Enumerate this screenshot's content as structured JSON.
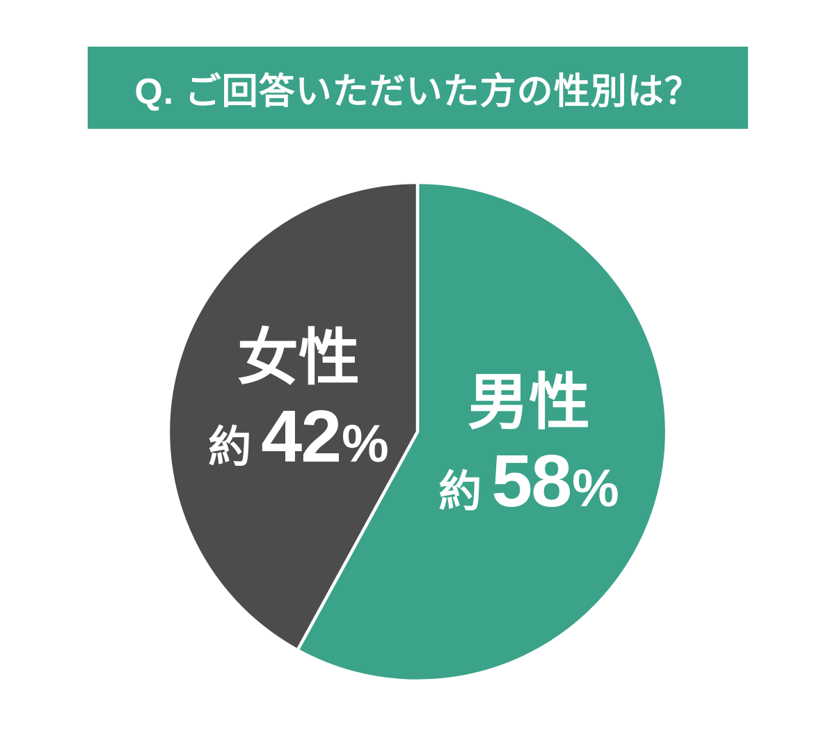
{
  "header": {
    "title": "Q. ご回答いただいた方の性別は？",
    "background_color": "#3BA38A",
    "text_color": "#FFFFFF"
  },
  "chart_data": {
    "type": "pie",
    "title": "Q. ご回答いただいた方の性別は？",
    "start_angle_deg": 0,
    "direction": "clockwise",
    "separator_color": "#FFFFFF",
    "slices": [
      {
        "key": "male",
        "label": "男性",
        "approx_prefix": "約",
        "value": 58,
        "unit": "%",
        "color": "#3BA38A",
        "text_color": "#FFFFFF"
      },
      {
        "key": "female",
        "label": "女性",
        "approx_prefix": "約",
        "value": 42,
        "unit": "%",
        "color": "#4C4C4C",
        "text_color": "#FFFFFF"
      }
    ]
  }
}
